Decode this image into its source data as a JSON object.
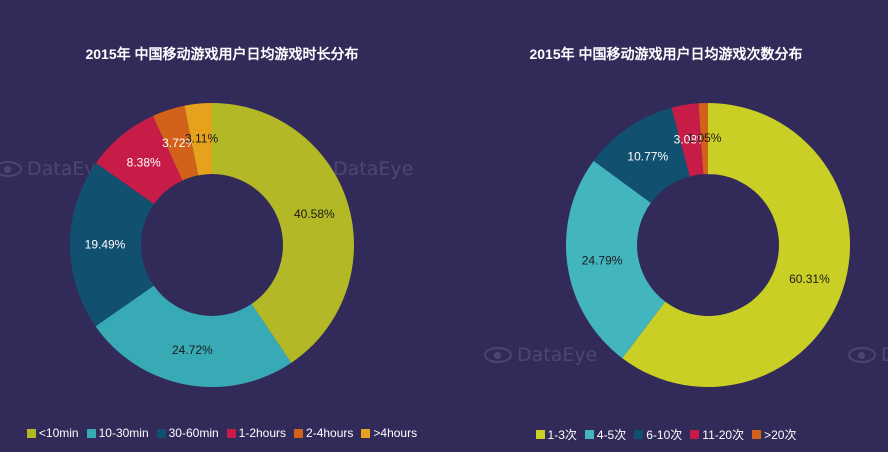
{
  "watermark": "DataEye",
  "chart_data": [
    {
      "type": "pie",
      "title": "2015年 中国移动游戏用户日均游戏时长分布",
      "categories": [
        "<10min",
        "10-30min",
        "30-60min",
        "1-2hours",
        "2-4hours",
        ">4hours"
      ],
      "values": [
        40.58,
        24.72,
        19.49,
        8.38,
        3.72,
        3.11
      ],
      "labels": [
        "40.58%",
        "24.72%",
        "19.49%",
        "8.38%",
        "3.72%",
        "3.11%"
      ],
      "colors": [
        "#b3b826",
        "#38aab5",
        "#11506f",
        "#c81c48",
        "#d2621a",
        "#e6a21c"
      ],
      "label_colors": [
        "#1a1a1a",
        "#1a1a1a",
        "#ffffff",
        "#ffffff",
        "#ffffff",
        "#1a1a1a"
      ],
      "legend_position": "bottom"
    },
    {
      "type": "pie",
      "title": "2015年 中国移动游戏用户日均游戏次数分布",
      "categories": [
        "1-3次",
        "4-5次",
        "6-10次",
        "11-20次",
        ">20次"
      ],
      "values": [
        60.31,
        24.79,
        10.77,
        3.08,
        1.05
      ],
      "labels": [
        "60.31%",
        "24.79%",
        "10.77%",
        "3.08%",
        "1.05%"
      ],
      "colors": [
        "#c9cf24",
        "#43b5bf",
        "#11506f",
        "#c81c48",
        "#d2621a"
      ],
      "label_colors": [
        "#1a1a1a",
        "#1a1a1a",
        "#ffffff",
        "#ffffff",
        "#1a1a1a"
      ],
      "legend_position": "bottom"
    }
  ]
}
